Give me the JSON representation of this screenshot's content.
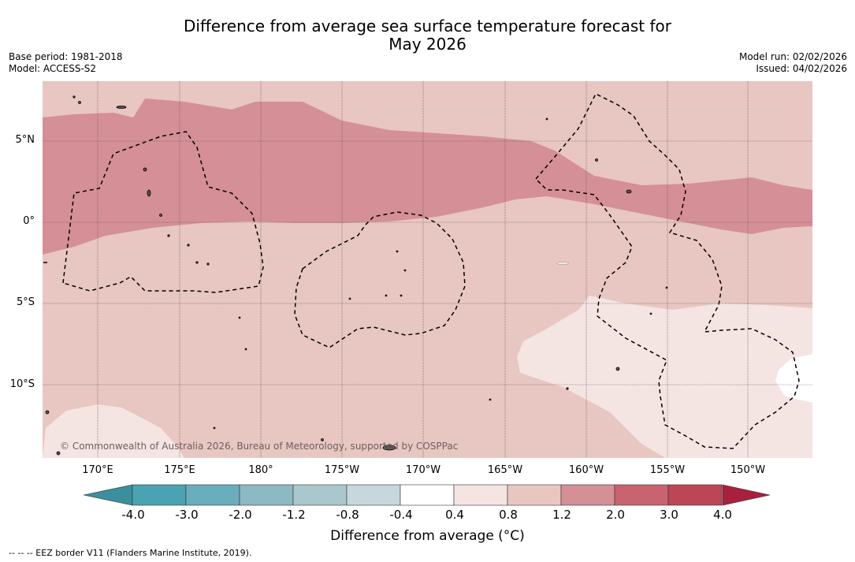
{
  "title_line1": "Difference from average sea surface temperature forecast for",
  "title_line2": "May 2026",
  "meta": {
    "base_period": "Base period: 1981-2018",
    "model": "Model: ACCESS-S2",
    "model_run": "Model run: 02/02/2026",
    "issued": "Issued: 04/02/2026"
  },
  "lat_labels": [
    "5°N",
    "0°",
    "5°S",
    "10°S"
  ],
  "lon_labels": [
    "170°E",
    "175°E",
    "180°",
    "175°W",
    "170°W",
    "165°W",
    "160°W",
    "155°W",
    "150°W"
  ],
  "colorbar": {
    "ticks": [
      "-4.0",
      "-3.0",
      "-2.0",
      "-1.2",
      "-0.8",
      "-0.4",
      "0.4",
      "0.8",
      "1.2",
      "2.0",
      "3.0",
      "4.0"
    ],
    "colors": [
      "#3a8f9c",
      "#4aa2b3",
      "#6aaebd",
      "#8db9c3",
      "#a9c7cc",
      "#c6d8db",
      "#ffffff",
      "#f4e4e2",
      "#e8c6c1",
      "#d58f96",
      "#c8646f",
      "#bc4656",
      "#a8203d"
    ],
    "label": "Difference from average (°C)"
  },
  "map": {
    "copyright": "© Commonwealth of Australia 2026, Bureau of Meteorology, supported by COSPPac"
  },
  "legend_text": "-- -- -- EEZ border V11 (Flanders Marine Institute, 2019)."
}
